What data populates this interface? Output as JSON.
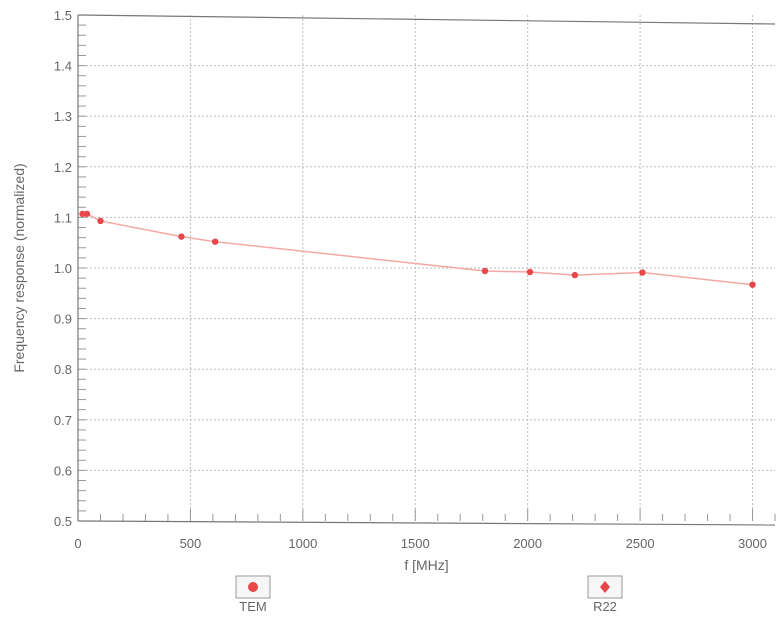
{
  "chart_data": {
    "type": "line",
    "title": "",
    "xlabel": "f [MHz]",
    "ylabel": "Frequency response (normalized)",
    "xlim": [
      0,
      3100
    ],
    "ylim": [
      0.5,
      1.5
    ],
    "xticks": [
      0,
      500,
      1000,
      1500,
      2000,
      2500,
      3000
    ],
    "yticks": [
      0.5,
      0.6,
      0.7,
      0.8,
      0.9,
      1.0,
      1.1,
      1.2,
      1.3,
      1.4,
      1.5
    ],
    "xtick_labels": [
      "0",
      "500",
      "1000",
      "1500",
      "2000",
      "2500",
      "3000"
    ],
    "ytick_labels": [
      "0.5",
      "0.6",
      "0.7",
      "0.8",
      "0.9",
      "1.0",
      "1.1",
      "1.2",
      "1.3",
      "1.4",
      "1.5"
    ],
    "grid": true,
    "legend_position": "bottom",
    "series": [
      {
        "name": "TEM",
        "color": "#e8474a",
        "marker": "circle",
        "x": [
          20,
          40,
          100,
          460,
          610,
          1810,
          2010,
          2210,
          2510,
          3000
        ],
        "y": [
          1.107,
          1.107,
          1.093,
          1.062,
          1.052,
          0.994,
          0.992,
          0.986,
          0.991,
          0.967
        ]
      },
      {
        "name": "R22",
        "color": "#e8474a",
        "marker": "diamond",
        "x": [],
        "y": []
      }
    ],
    "colors": {
      "line": "#f2a9a5",
      "point": "#e8474a",
      "grid": "#bdbdbd",
      "frame": "#777777"
    }
  }
}
